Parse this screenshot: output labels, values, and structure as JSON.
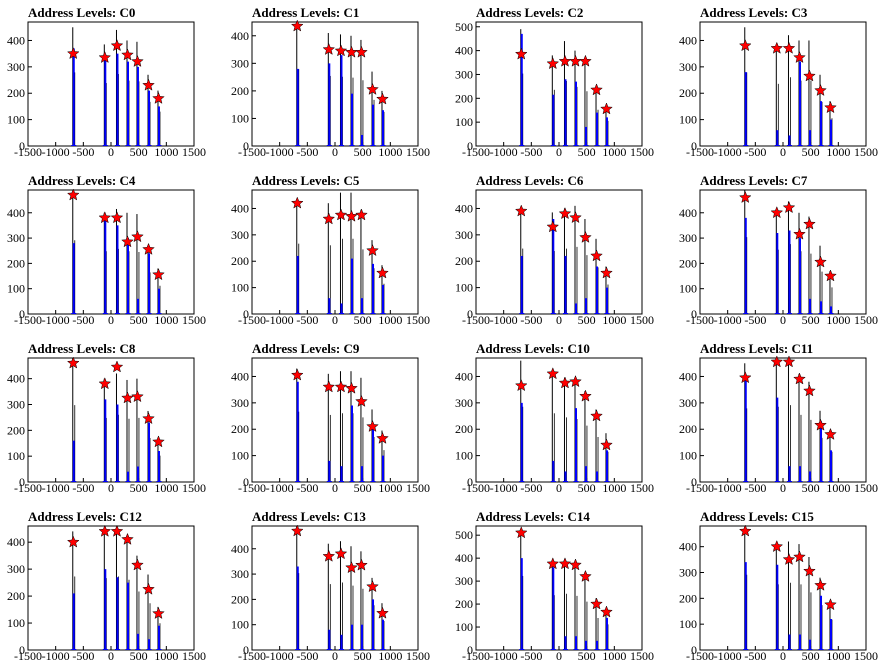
{
  "chart_data": {
    "type": "histogram-grid",
    "colors": {
      "histogram": "#000000",
      "blue_fill": "#0000ff",
      "marker": "#ff0000",
      "marker_outline": "#000000"
    },
    "marker_shape": "star",
    "xlim": [
      -1500,
      1500
    ],
    "xticks": [
      -1500,
      -1000,
      -500,
      0,
      500,
      1000,
      1500
    ],
    "xtick_labels": [
      "-1500",
      "-1000",
      "-500",
      "0",
      "500",
      "1000",
      "1500"
    ],
    "peak_x": [
      -700,
      -130,
      90,
      280,
      460,
      660,
      840
    ],
    "panels": [
      {
        "title": "Address Levels: C0",
        "ylim": [
          0,
          470
        ],
        "yticks": [
          0,
          100,
          200,
          300,
          400
        ],
        "hist": [
          450,
          385,
          440,
          400,
          395,
          270,
          210
        ],
        "blue": [
          370,
          330,
          350,
          320,
          300,
          210,
          150
        ],
        "peaks": [
          350,
          335,
          380,
          345,
          320,
          230,
          180
        ]
      },
      {
        "title": "Address Levels: C1",
        "ylim": [
          0,
          450
        ],
        "yticks": [
          0,
          100,
          200,
          300,
          400
        ],
        "hist": [
          450,
          410,
          405,
          400,
          385,
          270,
          200
        ],
        "blue": [
          280,
          300,
          330,
          190,
          40,
          150,
          130
        ],
        "peaks": [
          435,
          350,
          345,
          340,
          340,
          205,
          170
        ]
      },
      {
        "title": "Address Levels: C2",
        "ylim": [
          0,
          520
        ],
        "yticks": [
          0,
          100,
          200,
          300,
          400,
          500
        ],
        "hist": [
          490,
          380,
          440,
          400,
          370,
          245,
          170
        ],
        "blue": [
          470,
          215,
          280,
          270,
          80,
          140,
          120
        ],
        "peaks": [
          385,
          345,
          355,
          355,
          355,
          235,
          155
        ]
      },
      {
        "title": "Address Levels: C3",
        "ylim": [
          0,
          470
        ],
        "yticks": [
          0,
          100,
          200,
          300,
          400
        ],
        "hist": [
          450,
          380,
          420,
          400,
          400,
          270,
          170
        ],
        "blue": [
          280,
          60,
          40,
          320,
          60,
          170,
          100
        ],
        "peaks": [
          380,
          370,
          370,
          335,
          265,
          210,
          145
        ]
      },
      {
        "title": "Address Levels: C4",
        "ylim": [
          0,
          490
        ],
        "yticks": [
          0,
          100,
          200,
          300,
          400
        ],
        "hist": [
          470,
          400,
          415,
          400,
          395,
          265,
          180
        ],
        "blue": [
          280,
          370,
          350,
          300,
          60,
          240,
          100
        ],
        "peaks": [
          470,
          380,
          380,
          285,
          305,
          255,
          155
        ]
      },
      {
        "title": "Address Levels: C5",
        "ylim": [
          0,
          470
        ],
        "yticks": [
          0,
          100,
          200,
          300,
          400
        ],
        "hist": [
          430,
          420,
          460,
          460,
          395,
          280,
          185
        ],
        "blue": [
          220,
          60,
          40,
          210,
          60,
          190,
          110
        ],
        "peaks": [
          420,
          360,
          375,
          370,
          375,
          240,
          155
        ]
      },
      {
        "title": "Address Levels: C6",
        "ylim": [
          0,
          470
        ],
        "yticks": [
          0,
          100,
          200,
          300,
          400
        ],
        "hist": [
          400,
          385,
          400,
          410,
          360,
          285,
          180
        ],
        "blue": [
          220,
          360,
          220,
          40,
          60,
          180,
          100
        ],
        "peaks": [
          390,
          330,
          380,
          365,
          290,
          220,
          155
        ]
      },
      {
        "title": "Address Levels: C7",
        "ylim": [
          0,
          490
        ],
        "yticks": [
          0,
          100,
          200,
          300,
          400
        ],
        "hist": [
          490,
          410,
          445,
          400,
          385,
          270,
          170
        ],
        "blue": [
          380,
          320,
          330,
          300,
          60,
          50,
          30
        ],
        "peaks": [
          460,
          400,
          420,
          315,
          355,
          205,
          150
        ]
      },
      {
        "title": "Address Levels: C8",
        "ylim": [
          0,
          480
        ],
        "yticks": [
          0,
          100,
          200,
          300,
          400
        ],
        "hist": [
          480,
          400,
          420,
          395,
          400,
          275,
          165
        ],
        "blue": [
          160,
          320,
          300,
          40,
          60,
          230,
          120
        ],
        "peaks": [
          460,
          380,
          445,
          325,
          330,
          245,
          155
        ]
      },
      {
        "title": "Address Levels: C9",
        "ylim": [
          0,
          470
        ],
        "yticks": [
          0,
          100,
          200,
          300,
          400
        ],
        "hist": [
          430,
          410,
          420,
          420,
          395,
          275,
          195
        ],
        "blue": [
          380,
          80,
          60,
          290,
          60,
          200,
          100
        ],
        "peaks": [
          405,
          360,
          360,
          355,
          305,
          210,
          165
        ]
      },
      {
        "title": "Address Levels: C10",
        "ylim": [
          0,
          470
        ],
        "yticks": [
          0,
          100,
          200,
          300,
          400
        ],
        "hist": [
          460,
          420,
          395,
          385,
          345,
          275,
          185
        ],
        "blue": [
          300,
          80,
          40,
          280,
          60,
          40,
          120
        ],
        "peaks": [
          365,
          410,
          375,
          380,
          325,
          250,
          140
        ]
      },
      {
        "title": "Address Levels: C11",
        "ylim": [
          0,
          470
        ],
        "yticks": [
          0,
          100,
          200,
          300,
          400
        ],
        "hist": [
          450,
          460,
          470,
          410,
          380,
          270,
          185
        ],
        "blue": [
          390,
          320,
          60,
          60,
          40,
          230,
          120
        ],
        "peaks": [
          395,
          455,
          455,
          390,
          345,
          215,
          180
        ]
      },
      {
        "title": "Address Levels: C12",
        "ylim": [
          0,
          460
        ],
        "yticks": [
          0,
          100,
          200,
          300,
          400
        ],
        "hist": [
          440,
          430,
          440,
          420,
          350,
          280,
          160
        ],
        "blue": [
          210,
          300,
          270,
          250,
          60,
          40,
          90
        ],
        "peaks": [
          400,
          440,
          440,
          410,
          315,
          225,
          135
        ]
      },
      {
        "title": "Address Levels: C13",
        "ylim": [
          0,
          490
        ],
        "yticks": [
          0,
          100,
          200,
          300,
          400
        ],
        "hist": [
          490,
          420,
          430,
          410,
          390,
          285,
          185
        ],
        "blue": [
          330,
          80,
          60,
          100,
          100,
          200,
          120
        ],
        "peaks": [
          470,
          370,
          380,
          325,
          335,
          250,
          145
        ]
      },
      {
        "title": "Address Levels: C14",
        "ylim": [
          0,
          540
        ],
        "yticks": [
          0,
          100,
          200,
          300,
          400,
          500
        ],
        "hist": [
          520,
          385,
          395,
          380,
          340,
          225,
          180
        ],
        "blue": [
          400,
          360,
          60,
          60,
          40,
          40,
          140
        ],
        "peaks": [
          510,
          375,
          375,
          370,
          320,
          200,
          165
        ]
      },
      {
        "title": "Address Levels: C15",
        "ylim": [
          0,
          480
        ],
        "yticks": [
          0,
          100,
          200,
          300,
          400
        ],
        "hist": [
          470,
          410,
          420,
          410,
          360,
          280,
          190
        ],
        "blue": [
          340,
          330,
          60,
          60,
          40,
          210,
          120
        ],
        "peaks": [
          460,
          400,
          350,
          360,
          305,
          250,
          175
        ]
      }
    ]
  }
}
